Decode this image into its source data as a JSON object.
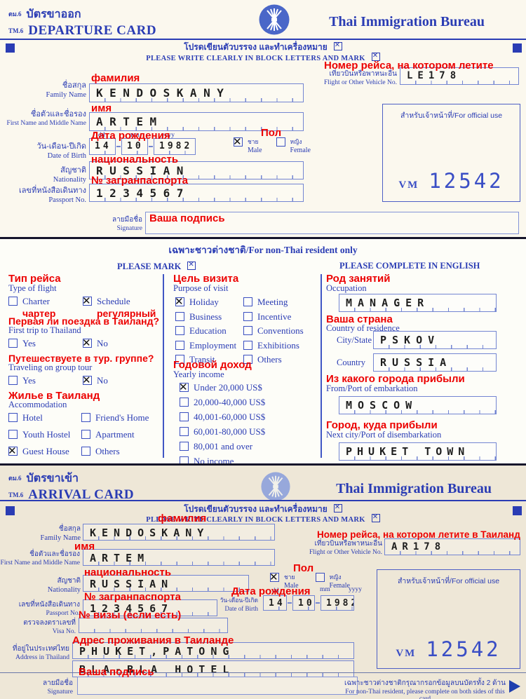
{
  "departure": {
    "form_code_th": "ตม.6",
    "form_code_en": "TM.6",
    "title_th": "บัตรขาออก",
    "title_en": "DEPARTURE CARD",
    "bureau": "Thai Immigration Bureau",
    "instruction_th": "โปรดเขียนตัวบรรจง และทำเครื่องหมาย",
    "instruction_en": "PLEASE WRITE CLEARLY IN BLOCK LETTERS AND MARK",
    "flight": {
      "annotation": "Номер рейса, на котором летите",
      "label_th": "เที่ยวบินหรือพาหนะอื่น",
      "label_en": "Flight or Other Vehicle No.",
      "value": "LE178"
    },
    "family_name": {
      "annotation": "фамилия",
      "label_th": "ชื่อสกุล",
      "label_en": "Family Name",
      "value": "KENDOSKANY"
    },
    "first_name": {
      "annotation": "имя",
      "label_th": "ชื่อตัวและชื่อรอง",
      "label_en": "First Name and Middle Name",
      "value": "ARTEM"
    },
    "dob": {
      "annotation": "Дата рождения",
      "label_th": "วัน-เดือน-ปีเกิด",
      "label_en": "Date of Birth",
      "dd_label": "dd",
      "mm_label": "mm",
      "yyyy_label": "yyyy",
      "dd": "14",
      "mm": "10",
      "yyyy": "1982"
    },
    "sex": {
      "annotation": "Пол",
      "options": [
        {
          "label_th": "ชาย",
          "label_en": "Male",
          "checked": true
        },
        {
          "label_th": "หญิง",
          "label_en": "Female",
          "checked": false
        }
      ]
    },
    "nationality": {
      "annotation": "национальность",
      "label_th": "สัญชาติ",
      "label_en": "Nationality",
      "value": "RUSSIAN"
    },
    "passport": {
      "annotation": "№ загранпаспорта",
      "label_th": "เลขที่หนังสือเดินทาง",
      "label_en": "Passport No.",
      "value": "1234567"
    },
    "official_use": {
      "label": "สำหรับเจ้าหน้าที่/For official use",
      "stamp_prefix": "VM",
      "stamp_number": "12542"
    },
    "signature": {
      "annotation": "Ваша подпись",
      "label_th": "ลายมือชื่อ",
      "label_en": "Signature"
    }
  },
  "middle": {
    "title": "เฉพาะชาวต่างชาติ/For non-Thai resident only",
    "please_mark": "PLEASE MARK",
    "please_complete": "PLEASE COMPLETE IN ENGLISH",
    "type_of_flight": {
      "annotation": "Тип рейса",
      "label": "Type of flight",
      "options": [
        {
          "label": "Charter",
          "sub": "чартер",
          "checked": false
        },
        {
          "label": "Schedule",
          "sub": "регулярный",
          "checked": true
        }
      ]
    },
    "first_trip": {
      "annotation": "Первая ли поездка в Таиланд?",
      "label": "First trip to Thailand",
      "options": [
        {
          "label": "Yes",
          "checked": false
        },
        {
          "label": "No",
          "checked": true
        }
      ]
    },
    "group_tour": {
      "annotation": "Путешествуете в тур. группе?",
      "label": "Traveling on group tour",
      "options": [
        {
          "label": "Yes",
          "checked": false
        },
        {
          "label": "No",
          "checked": true
        }
      ]
    },
    "accommodation": {
      "annotation": "Жилье в Таиланд",
      "label": "Accommodation",
      "options": [
        {
          "label": "Hotel",
          "checked": false
        },
        {
          "label": "Friend's Home",
          "checked": false
        },
        {
          "label": "Youth Hostel",
          "checked": false
        },
        {
          "label": "Apartment",
          "checked": false
        },
        {
          "label": "Guest House",
          "checked": true
        },
        {
          "label": "Others",
          "checked": false
        }
      ]
    },
    "purpose": {
      "annotation": "Цель визита",
      "label": "Purpose of visit",
      "options": [
        {
          "label": "Holiday",
          "checked": true
        },
        {
          "label": "Meeting",
          "checked": false
        },
        {
          "label": "Business",
          "checked": false
        },
        {
          "label": "Incentive",
          "checked": false
        },
        {
          "label": "Education",
          "checked": false
        },
        {
          "label": "Conventions",
          "checked": false
        },
        {
          "label": "Employment",
          "checked": false
        },
        {
          "label": "Exhibitions",
          "checked": false
        },
        {
          "label": "Transit",
          "checked": false
        },
        {
          "label": "Others",
          "checked": false
        }
      ]
    },
    "income": {
      "annotation": "Годовой доход",
      "label": "Yearly income",
      "options": [
        {
          "label": "Under 20,000 US$",
          "checked": true
        },
        {
          "label": "20,000-40,000 US$",
          "checked": false
        },
        {
          "label": "40,001-60,000 US$",
          "checked": false
        },
        {
          "label": "60,001-80,000 US$",
          "checked": false
        },
        {
          "label": "80,001 and over",
          "checked": false
        },
        {
          "label": "No income",
          "checked": false
        }
      ]
    },
    "occupation": {
      "annotation": "Род занятий",
      "label": "Occupation",
      "value": "MANAGER"
    },
    "residence": {
      "annotation": "Ваша страна",
      "label": "Country of residence",
      "city_label": "City/State",
      "city_value": "PSKOV",
      "country_label": "Country",
      "country_value": "RUSSIA"
    },
    "embarkation": {
      "annotation": "Из какого города прибыли",
      "label": "From/Port of embarkation",
      "value": "MOSCOW"
    },
    "disembarkation": {
      "annotation": "Город, куда прибыли",
      "label": "Next city/Port of disembarkation",
      "value": "PHUKET TOWN"
    }
  },
  "arrival": {
    "form_code_th": "ตม.6",
    "form_code_en": "TM.6",
    "title_th": "บัตรขาเข้า",
    "title_en": "ARRIVAL CARD",
    "bureau": "Thai Immigration Bureau",
    "instruction_th": "โปรดเขียนตัวบรรจง และทำเครื่องหมาย",
    "instruction_en": "PLEASE WRITE CLEARLY IN BLOCK LETTERS AND MARK",
    "family_name": {
      "annotation": "фамилия",
      "label_th": "ชื่อสกุล",
      "label_en": "Family Name",
      "value": "KENDOSKANY"
    },
    "first_name": {
      "annotation": "имя",
      "label_th": "ชื่อตัวและชื่อรอง",
      "label_en": "First Name and Middle Name",
      "value": "ARTEM"
    },
    "nationality": {
      "annotation": "национальность",
      "label_th": "สัญชาติ",
      "label_en": "Nationality",
      "value": "RUSSIAN"
    },
    "passport": {
      "annotation": "№ загранпаспорта",
      "label_th": "เลขที่หนังสือเดินทาง",
      "label_en": "Passport No.",
      "value": "1234567"
    },
    "flight": {
      "annotation": "Номер рейса, на котором летите в Таиланд",
      "label_th": "เที่ยวบินหรือพาหนะอื่น",
      "label_en": "Flight or Other Vehicle No.",
      "value": "AR178"
    },
    "sex": {
      "annotation": "Пол",
      "options": [
        {
          "label_th": "ชาย",
          "label_en": "Male",
          "checked": true
        },
        {
          "label_th": "หญิง",
          "label_en": "Female",
          "checked": false
        }
      ]
    },
    "dob": {
      "annotation": "Дата рождения",
      "label_th": "วัน-เดือน-ปีเกิด",
      "label_en": "Date of Birth",
      "dd_label": "dd",
      "mm_label": "mm",
      "yyyy_label": "yyyy",
      "dd": "14",
      "mm": "10",
      "yyyy": "1982"
    },
    "visa": {
      "annotation": "№ визы (если есть)",
      "label_th": "ตรวจลงตราเลขที่",
      "label_en": "Visa No.",
      "value": ""
    },
    "address": {
      "annotation": "Адрес проживания в Таиланде",
      "label_th": "ที่อยู่ในประเทศไทย",
      "label_en": "Address in Thailand",
      "line1": "PHUKET,PATONG",
      "line2": "BLA-BLA HOTEL"
    },
    "official_use": {
      "label": "สำหรับเจ้าหน้าที่/For official use",
      "stamp_prefix": "VM",
      "stamp_number": "12542"
    },
    "signature": {
      "annotation": "Ваша подпись",
      "label_th": "ลายมือชื่อ",
      "label_en": "Signature"
    },
    "footer_th": "เฉพาะชาวต่างชาติกรุณากรอกข้อมูลบนบัตรทั้ง 2 ด้าน",
    "footer_en": "For non-Thai resident, please complete on both sides of this card"
  }
}
